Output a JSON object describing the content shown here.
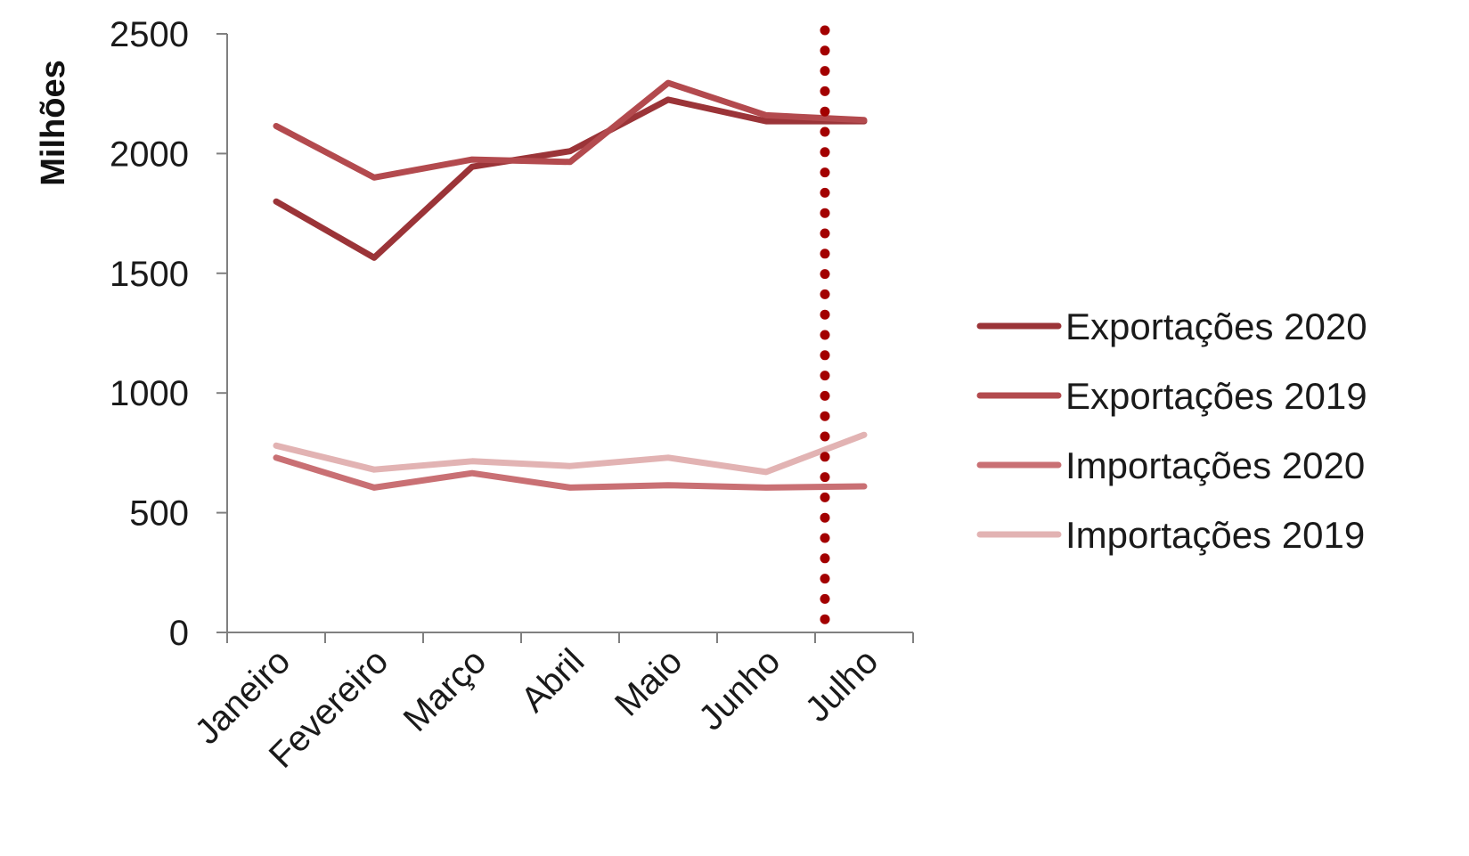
{
  "chart_data": {
    "type": "line",
    "title": "",
    "xlabel": "",
    "ylabel": "Milhões",
    "categories": [
      "Janeiro",
      "Fevereiro",
      "Março",
      "Abril",
      "Maio",
      "Junho",
      "Julho"
    ],
    "ylim": [
      0,
      2500
    ],
    "yticks": [
      0,
      500,
      1000,
      1500,
      2000,
      2500
    ],
    "grid": false,
    "legend_position": "right",
    "series": [
      {
        "name": "Exportações 2020",
        "color": "#9b3438",
        "values": [
          1800,
          1565,
          1945,
          2010,
          2225,
          2135,
          2135
        ]
      },
      {
        "name": "Exportações 2019",
        "color": "#b34a4e",
        "values": [
          2115,
          1900,
          1975,
          1965,
          2295,
          2160,
          2140
        ]
      },
      {
        "name": "Importações 2020",
        "color": "#c97074",
        "values": [
          730,
          605,
          665,
          605,
          615,
          605,
          610
        ]
      },
      {
        "name": "Importações 2019",
        "color": "#e2b3b3",
        "values": [
          780,
          680,
          715,
          695,
          730,
          670,
          825
        ]
      }
    ],
    "annotations": [
      {
        "type": "vertical-dotted-line",
        "at_category": "Junho",
        "offset": 0.6,
        "color": "#a30000"
      }
    ]
  }
}
